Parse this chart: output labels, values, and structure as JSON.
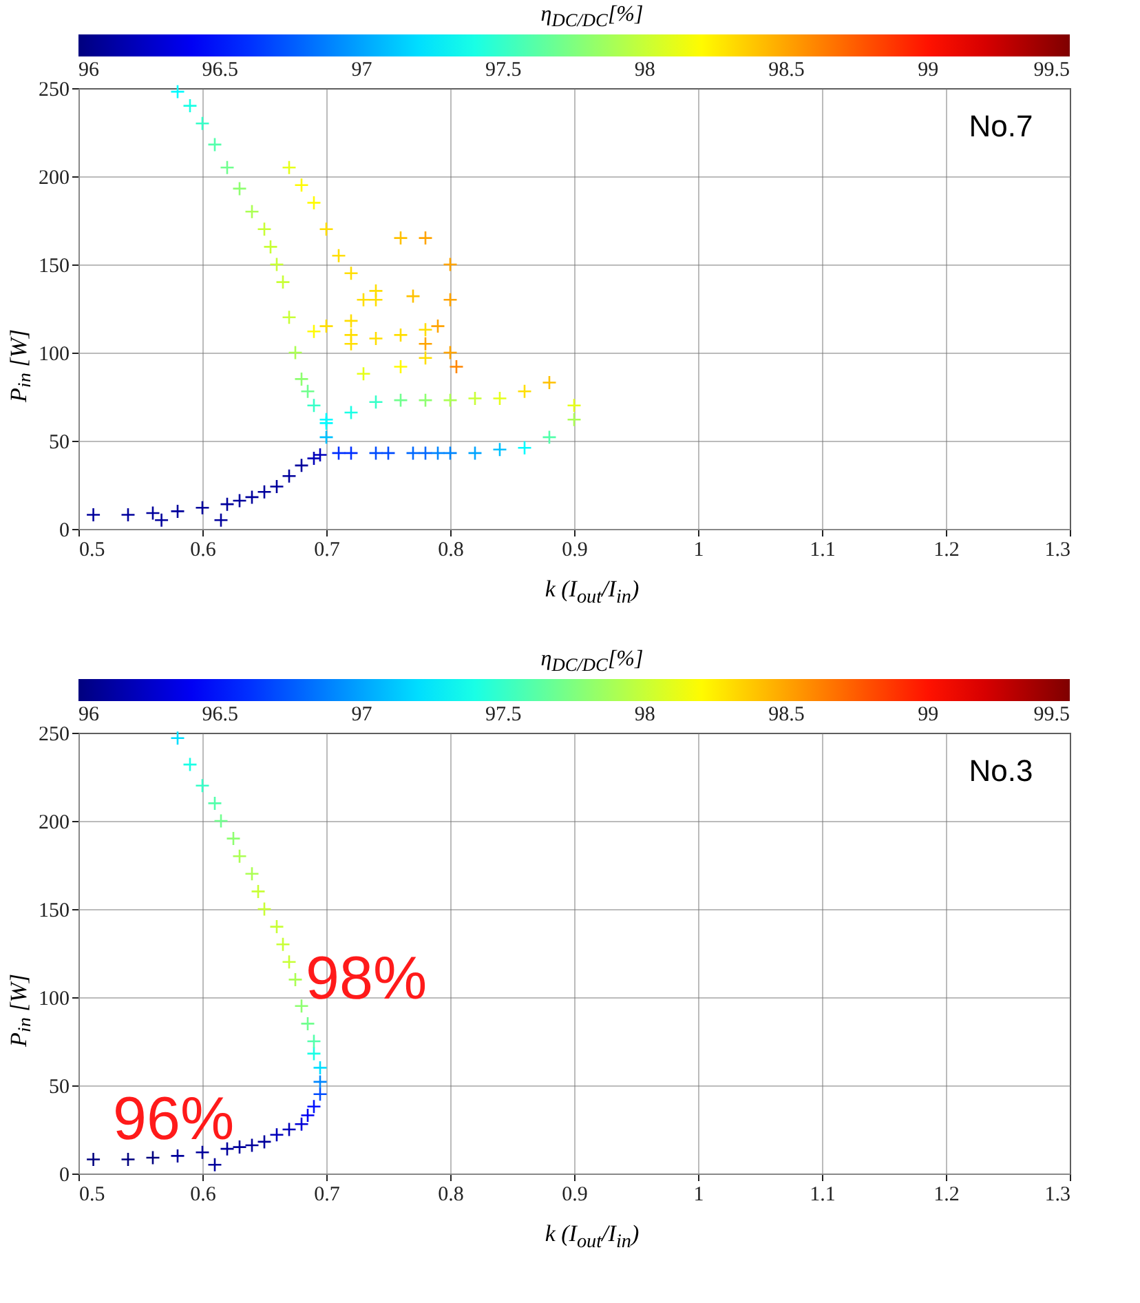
{
  "chart_data": [
    {
      "type": "scatter",
      "clabel": "η$_{DC/DC}$[%]",
      "xlabel": "k (I$_{out}$/I$_{in}$)",
      "ylabel": "P$_{in}$ [W]",
      "marker": "cross",
      "grid": true,
      "xlim": [
        0.5,
        1.3
      ],
      "ylim": [
        0,
        250
      ],
      "xticks": [
        0.5,
        0.6,
        0.7,
        0.8,
        0.9,
        1,
        1.1,
        1.2,
        1.3
      ],
      "yticks": [
        0,
        50,
        100,
        150,
        200,
        250
      ],
      "clim": [
        96,
        99.5
      ],
      "cticks": [
        96,
        96.5,
        97,
        97.5,
        98,
        98.5,
        99,
        99.5
      ],
      "annotations": [
        "No.7"
      ],
      "x": [
        0.512,
        0.54,
        0.56,
        0.567,
        0.58,
        0.6,
        0.62,
        0.615,
        0.63,
        0.64,
        0.65,
        0.66,
        0.67,
        0.68,
        0.69,
        0.695,
        0.71,
        0.72,
        0.74,
        0.75,
        0.77,
        0.78,
        0.79,
        0.8,
        0.82,
        0.84,
        0.86,
        0.88,
        0.9,
        0.9,
        0.88,
        0.86,
        0.84,
        0.82,
        0.8,
        0.78,
        0.76,
        0.74,
        0.72,
        0.7,
        0.58,
        0.59,
        0.6,
        0.61,
        0.62,
        0.63,
        0.64,
        0.65,
        0.655,
        0.66,
        0.665,
        0.67,
        0.675,
        0.68,
        0.685,
        0.69,
        0.7,
        0.7,
        0.67,
        0.68,
        0.69,
        0.7,
        0.71,
        0.72,
        0.73,
        0.7,
        0.72,
        0.74,
        0.76,
        0.78,
        0.8,
        0.8,
        0.79,
        0.8,
        0.805,
        0.78,
        0.74,
        0.77,
        0.69,
        0.72,
        0.74,
        0.76,
        0.78,
        0.72,
        0.73,
        0.76,
        0.78
      ],
      "values": [
        8,
        8,
        9,
        5,
        10,
        12,
        14,
        5,
        16,
        18,
        21,
        24,
        30,
        36,
        40,
        42,
        43,
        43,
        43,
        43,
        43,
        43,
        43,
        43,
        43,
        45,
        46,
        52,
        62,
        70,
        83,
        78,
        74,
        74,
        73,
        73,
        73,
        72,
        66,
        62,
        248,
        240,
        230,
        218,
        205,
        193,
        180,
        170,
        160,
        150,
        140,
        120,
        100,
        85,
        78,
        70,
        60,
        52,
        205,
        195,
        185,
        170,
        155,
        145,
        130,
        115,
        118,
        130,
        165,
        165,
        150,
        130,
        115,
        100,
        92,
        105,
        135,
        132,
        112,
        110,
        108,
        110,
        113,
        105,
        88,
        92,
        97
      ],
      "cvalues": [
        96.1,
        96.1,
        96.1,
        96.1,
        96.1,
        96.1,
        96.1,
        96.1,
        96.1,
        96.1,
        96.1,
        96.1,
        96.1,
        96.1,
        96.2,
        96.2,
        96.6,
        96.6,
        96.7,
        96.7,
        96.8,
        96.8,
        96.9,
        96.9,
        97,
        97.1,
        97.3,
        97.6,
        97.9,
        98.1,
        98.4,
        98.3,
        98.1,
        98,
        97.9,
        97.8,
        97.7,
        97.5,
        97.4,
        97.3,
        97.3,
        97.4,
        97.5,
        97.6,
        97.7,
        97.8,
        97.9,
        98,
        98,
        98,
        98,
        98,
        97.9,
        97.8,
        97.7,
        97.5,
        97.3,
        97.1,
        98.1,
        98.2,
        98.2,
        98.3,
        98.3,
        98.3,
        98.3,
        98.3,
        98.3,
        98.3,
        98.4,
        98.5,
        98.5,
        98.5,
        98.5,
        98.5,
        98.6,
        98.5,
        98.3,
        98.4,
        98.2,
        98.3,
        98.3,
        98.3,
        98.3,
        98.3,
        98.1,
        98.2,
        98.3
      ]
    },
    {
      "type": "scatter",
      "clabel": "η$_{DC/DC}$[%]",
      "xlabel": "k (I$_{out}$/I$_{in}$)",
      "ylabel": "P$_{in}$ [W]",
      "marker": "cross",
      "grid": true,
      "xlim": [
        0.5,
        1.3
      ],
      "ylim": [
        0,
        250
      ],
      "xticks": [
        0.5,
        0.6,
        0.7,
        0.8,
        0.9,
        1,
        1.1,
        1.2,
        1.3
      ],
      "yticks": [
        0,
        50,
        100,
        150,
        200,
        250
      ],
      "clim": [
        96,
        99.5
      ],
      "cticks": [
        96,
        96.5,
        97,
        97.5,
        98,
        98.5,
        99,
        99.5
      ],
      "annotations": [
        "No.3",
        "98%",
        "96%"
      ],
      "x": [
        0.512,
        0.54,
        0.56,
        0.58,
        0.6,
        0.61,
        0.62,
        0.63,
        0.64,
        0.65,
        0.66,
        0.67,
        0.68,
        0.685,
        0.69,
        0.695,
        0.695,
        0.695,
        0.69,
        0.69,
        0.685,
        0.68,
        0.675,
        0.67,
        0.665,
        0.66,
        0.65,
        0.645,
        0.64,
        0.63,
        0.625,
        0.615,
        0.61,
        0.6,
        0.59,
        0.58
      ],
      "values": [
        8,
        8,
        9,
        10,
        12,
        5,
        14,
        15,
        16,
        18,
        22,
        25,
        28,
        33,
        38,
        45,
        52,
        60,
        68,
        75,
        85,
        95,
        110,
        120,
        130,
        140,
        150,
        160,
        170,
        180,
        190,
        200,
        210,
        220,
        232,
        247
      ],
      "cvalues": [
        96,
        96,
        96,
        96.1,
        96.1,
        96.1,
        96.1,
        96.1,
        96.1,
        96.1,
        96.2,
        96.2,
        96.3,
        96.4,
        96.5,
        96.7,
        96.9,
        97.2,
        97.4,
        97.6,
        97.7,
        97.8,
        97.9,
        98,
        98,
        98,
        98,
        98,
        97.9,
        97.9,
        97.8,
        97.7,
        97.6,
        97.5,
        97.4,
        97.2
      ]
    }
  ]
}
